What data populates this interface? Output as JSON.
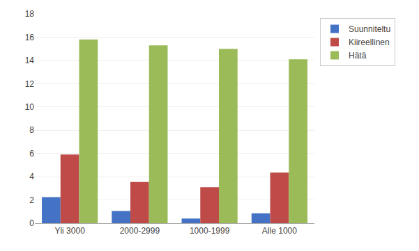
{
  "chart_data": {
    "type": "bar",
    "categories": [
      "Yli 3000",
      "2000-2999",
      "1000-1999",
      "Alle 1000"
    ],
    "series": [
      {
        "name": "Suunniteltu",
        "color": "#4472C4",
        "values": [
          2.25,
          1.05,
          0.4,
          0.85
        ]
      },
      {
        "name": "Kiireellinen",
        "color": "#BE4B48",
        "values": [
          5.9,
          3.55,
          3.1,
          4.35
        ]
      },
      {
        "name": "Hätä",
        "color": "#9BBB59",
        "values": [
          15.8,
          15.3,
          15.0,
          14.1
        ]
      }
    ],
    "ylim": [
      0,
      18
    ],
    "yticks": [
      0,
      2,
      4,
      6,
      8,
      10,
      12,
      14,
      16,
      18
    ],
    "grid": true,
    "legend": "upper right"
  }
}
